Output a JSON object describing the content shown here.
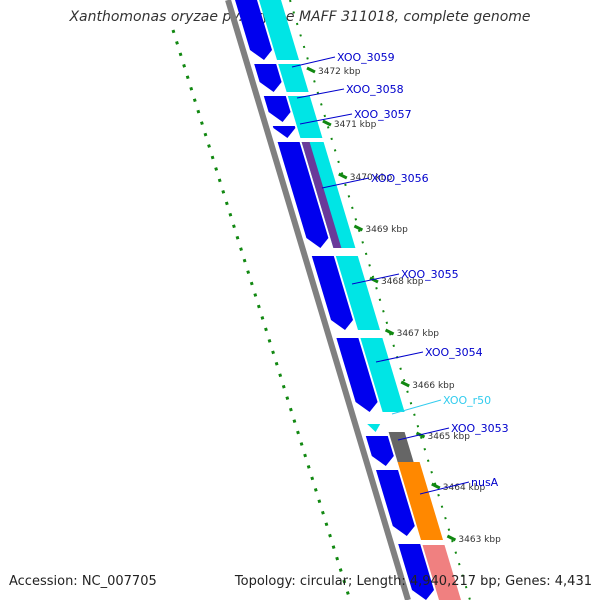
{
  "title": "Xanthomonas oryzae pv. oryzae MAFF 311018, complete genome",
  "footer": {
    "accession": "Accession: NC_007705",
    "topology": "Topology: circular; Length: 4,940,217 bp; Genes: 4,431"
  },
  "colors": {
    "gene_blue": "#0000ee",
    "rna_cyan": "#00e5e5",
    "backbone_gray": "#808080",
    "tick_green": "#118811",
    "nusA_orange": "#ff8800",
    "pink": "#f08080",
    "dark_gray": "#666666",
    "purple": "#6a3a9a"
  },
  "scale_ticks": [
    {
      "label": "3472 kbp",
      "kbp": 3472
    },
    {
      "label": "3471 kbp",
      "kbp": 3471
    },
    {
      "label": "3470 kbp",
      "kbp": 3470
    },
    {
      "label": "3469 kbp",
      "kbp": 3469
    },
    {
      "label": "3468 kbp",
      "kbp": 3468
    },
    {
      "label": "3467 kbp",
      "kbp": 3467
    },
    {
      "label": "3466 kbp",
      "kbp": 3466
    },
    {
      "label": "3465 kbp",
      "kbp": 3465
    },
    {
      "label": "3464 kbp",
      "kbp": 3464
    },
    {
      "label": "3463 kbp",
      "kbp": 3463
    }
  ],
  "feature_labels": [
    {
      "text": "XOO_3059",
      "type": "gene"
    },
    {
      "text": "XOO_3058",
      "type": "gene"
    },
    {
      "text": "XOO_3057",
      "type": "gene"
    },
    {
      "text": "XOO_3056",
      "type": "gene"
    },
    {
      "text": "XOO_3055",
      "type": "gene"
    },
    {
      "text": "XOO_3054",
      "type": "gene"
    },
    {
      "text": "XOO_r50",
      "type": "rna"
    },
    {
      "text": "XOO_3053",
      "type": "gene"
    },
    {
      "text": "nusA",
      "type": "gene"
    }
  ]
}
